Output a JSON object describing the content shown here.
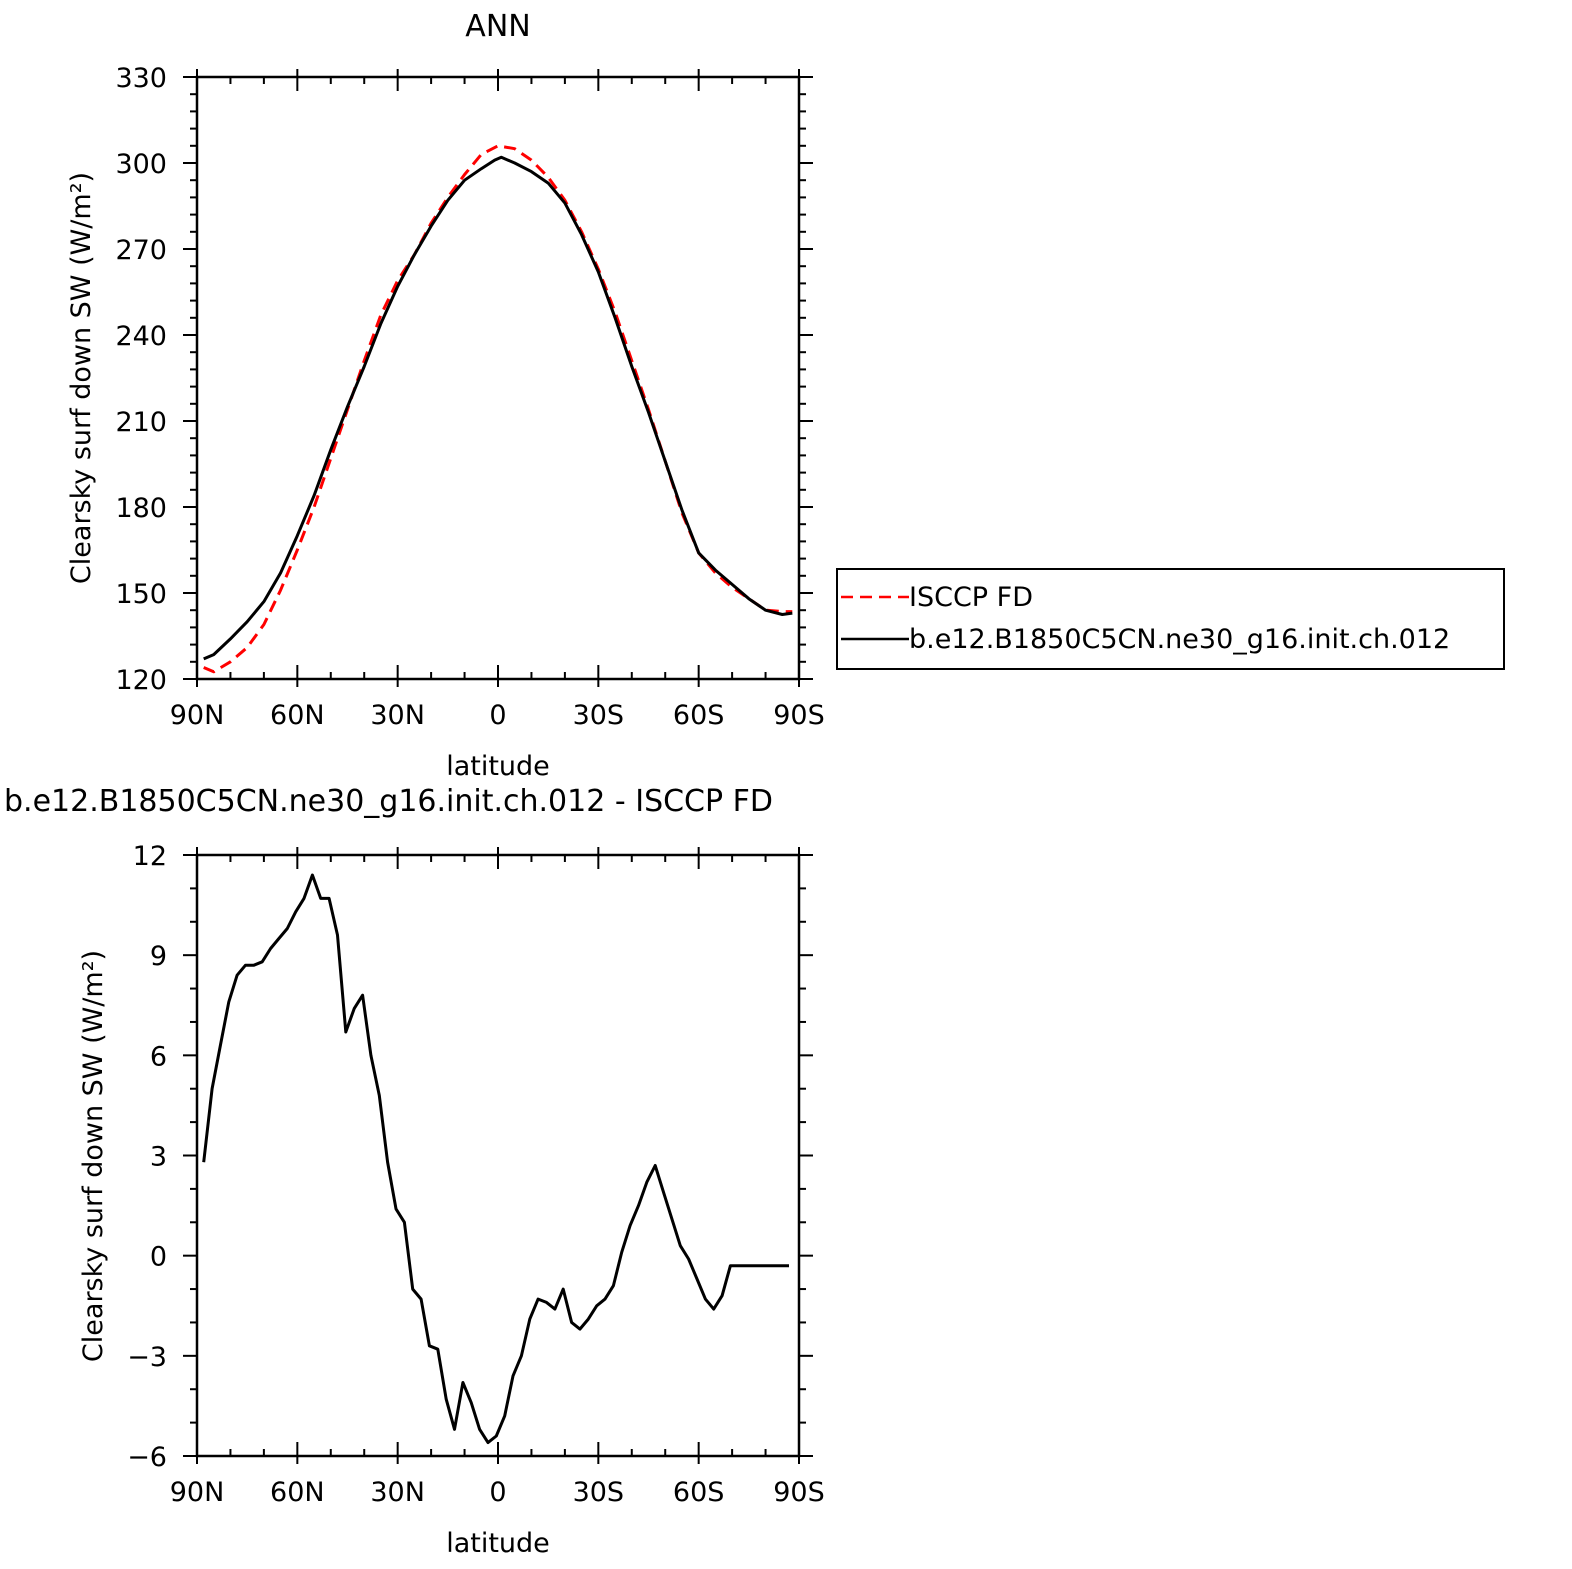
{
  "chart_data": [
    {
      "type": "line",
      "title": "ANN",
      "xlabel": "latitude",
      "ylabel": "Clearsky surf down SW (W/m²)",
      "xlim": [
        90,
        -90
      ],
      "ylim": [
        120,
        330
      ],
      "x_ticks": [
        90,
        60,
        30,
        0,
        -30,
        -60,
        -90
      ],
      "x_tick_labels": [
        "90N",
        "60N",
        "30N",
        "0",
        "30S",
        "60S",
        "90S"
      ],
      "y_ticks": [
        120,
        150,
        180,
        210,
        240,
        270,
        300,
        330
      ],
      "y_tick_labels": [
        "120",
        "150",
        "180",
        "210",
        "240",
        "270",
        "300",
        "330"
      ],
      "legend_position": "right",
      "series": [
        {
          "name": "ISCCP FD",
          "color": "#ff0000",
          "dash": "dashed",
          "x": [
            88,
            85,
            80,
            75,
            70,
            65,
            60,
            55,
            50,
            45,
            40,
            35,
            30,
            25,
            20,
            15,
            10,
            5,
            0,
            -5,
            -10,
            -15,
            -20,
            -25,
            -30,
            -35,
            -40,
            -45,
            -50,
            -55,
            -60,
            -65,
            -70,
            -75,
            -80,
            -85,
            -88
          ],
          "y": [
            124,
            122.5,
            126,
            131,
            139,
            151,
            165,
            180,
            197,
            214,
            231,
            247,
            259,
            268,
            279,
            288,
            296,
            303,
            306,
            305,
            301,
            295,
            287,
            276,
            263,
            248,
            231,
            214,
            196,
            178,
            164,
            157,
            152,
            148,
            144,
            143.5,
            143.5
          ]
        },
        {
          "name": "b.e12.B1850C5CN.ne30_g16.init.ch.012",
          "color": "#000000",
          "dash": "solid",
          "x": [
            88,
            85,
            80,
            75,
            70,
            65,
            60,
            55,
            50,
            45,
            40,
            35,
            30,
            25,
            20,
            15,
            10,
            5,
            1,
            -1,
            -5,
            -10,
            -15,
            -20,
            -25,
            -30,
            -35,
            -40,
            -45,
            -50,
            -55,
            -60,
            -65,
            -70,
            -75,
            -80,
            -85,
            -88
          ],
          "y": [
            127,
            128.5,
            134,
            140,
            147,
            157,
            170,
            184,
            200,
            215,
            229,
            244,
            257,
            268,
            278,
            287,
            294,
            298,
            301,
            302,
            300,
            297,
            293,
            286,
            275,
            262,
            246,
            229,
            213,
            196,
            179,
            164,
            158,
            153,
            148,
            144,
            142.5,
            143
          ]
        }
      ]
    },
    {
      "type": "line",
      "title": "b.e12.B1850C5CN.ne30_g16.init.ch.012 - ISCCP FD",
      "xlabel": "latitude",
      "ylabel": "Clearsky surf down SW (W/m²)",
      "xlim": [
        90,
        -90
      ],
      "ylim": [
        -6,
        12
      ],
      "x_ticks": [
        90,
        60,
        30,
        0,
        -30,
        -60,
        -90
      ],
      "x_tick_labels": [
        "90N",
        "60N",
        "30N",
        "0",
        "30S",
        "60S",
        "90S"
      ],
      "y_ticks": [
        -6,
        -3,
        0,
        3,
        6,
        9,
        12
      ],
      "y_tick_labels": [
        "−6",
        "−3",
        "0",
        "3",
        "6",
        "9",
        "12"
      ],
      "series": [
        {
          "color": "#000000",
          "dash": "solid",
          "x": [
            88,
            85.5,
            83,
            80.5,
            78,
            75.5,
            73,
            70.5,
            68,
            65.5,
            63,
            60.5,
            58,
            55.5,
            53,
            50.5,
            48,
            45.5,
            43,
            40.5,
            38,
            35.5,
            33,
            30.5,
            28,
            25.5,
            23,
            20.5,
            18,
            15.5,
            13,
            10.5,
            8,
            5.5,
            3,
            0.5,
            -2,
            -4.5,
            -7,
            -9.5,
            -12,
            -14.5,
            -17,
            -19.5,
            -22,
            -24.5,
            -27,
            -29.5,
            -32,
            -34.5,
            -37,
            -39.5,
            -42,
            -44.5,
            -47,
            -49.5,
            -52,
            -54.5,
            -57,
            -59.5,
            -62,
            -64.5,
            -67,
            -69.5,
            -72,
            -74.5,
            -77,
            -79.5,
            -82,
            -84.5,
            -87
          ],
          "y": [
            2.8,
            5.0,
            6.3,
            7.6,
            8.4,
            8.7,
            8.7,
            8.8,
            9.2,
            9.5,
            9.8,
            10.3,
            10.7,
            11.4,
            10.7,
            10.7,
            9.6,
            6.7,
            7.4,
            7.8,
            6.0,
            4.8,
            2.8,
            1.4,
            1.0,
            -1.0,
            -1.3,
            -2.7,
            -2.8,
            -4.3,
            -5.2,
            -3.8,
            -4.4,
            -5.2,
            -5.6,
            -5.4,
            -4.8,
            -3.6,
            -3.0,
            -1.9,
            -1.3,
            -1.4,
            -1.6,
            -1.0,
            -2.0,
            -2.2,
            -1.9,
            -1.5,
            -1.3,
            -0.9,
            0.1,
            0.9,
            1.5,
            2.2,
            2.7,
            1.9,
            1.1,
            0.3,
            -0.1,
            -0.7,
            -1.3,
            -1.6,
            -1.2,
            -0.3,
            -0.3,
            -0.3,
            -0.3,
            -0.3,
            -0.3,
            -0.3,
            -0.3
          ]
        }
      ]
    }
  ]
}
